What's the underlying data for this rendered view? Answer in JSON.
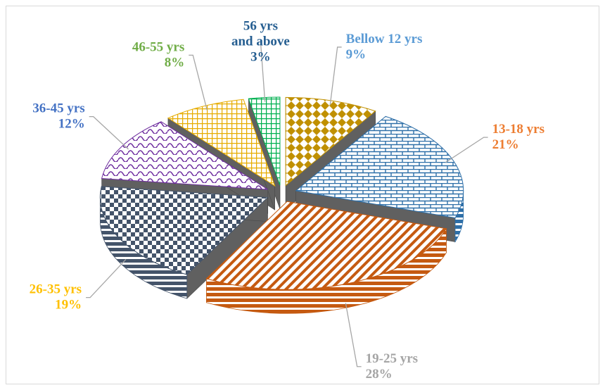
{
  "chart_data": {
    "type": "pie",
    "title": "",
    "three_d": true,
    "exploded": true,
    "legend": "none",
    "slices": [
      {
        "label": "Bellow 12 yrs",
        "value": 9,
        "percent_label": "9%",
        "color": "#c09000",
        "label_color": "#5b9bd5",
        "pattern": "diamonds"
      },
      {
        "label": "13-18 yrs",
        "value": 21,
        "percent_label": "21%",
        "color": "#2e6fa8",
        "label_color": "#ed7d31",
        "pattern": "bricks"
      },
      {
        "label": "19-25 yrs",
        "value": 28,
        "percent_label": "28%",
        "color": "#c55a11",
        "label_color": "#a5a5a5",
        "pattern": "diagonal-stripes"
      },
      {
        "label": "26-35 yrs",
        "value": 19,
        "percent_label": "19%",
        "color": "#44546a",
        "label_color": "#ffc000",
        "pattern": "checkerboard"
      },
      {
        "label": "36-45 yrs",
        "value": 12,
        "percent_label": "12%",
        "color": "#7030a0",
        "label_color": "#4472c4",
        "pattern": "waves"
      },
      {
        "label": "46-55 yrs",
        "value": 8,
        "percent_label": "8%",
        "color": "#e6ac00",
        "label_color": "#70ad47",
        "pattern": "grid"
      },
      {
        "label": "56 yrs and above",
        "value": 3,
        "percent_label": "3%",
        "color": "#00b050",
        "label_color": "#255e91",
        "pattern": "grid"
      }
    ]
  }
}
